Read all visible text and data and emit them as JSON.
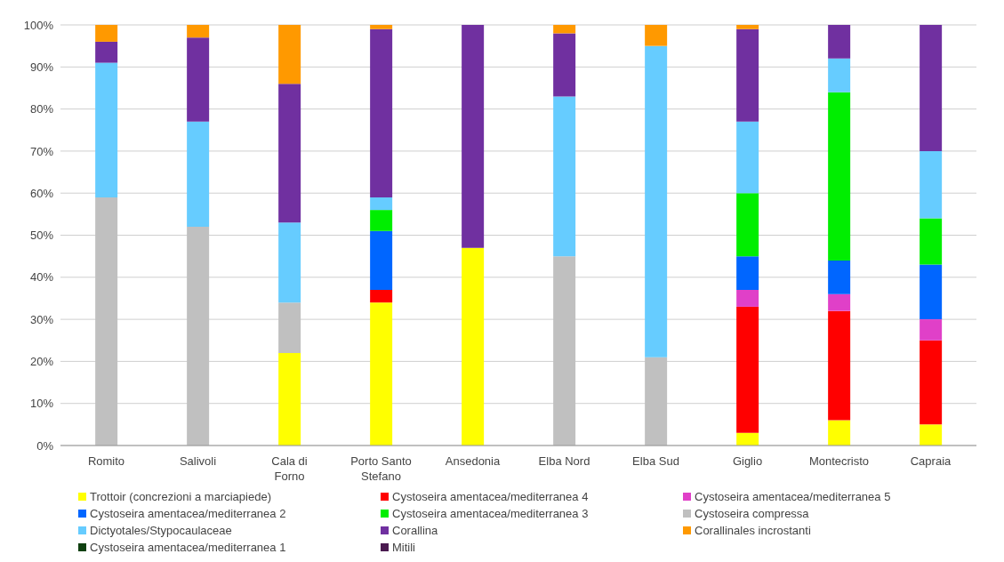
{
  "chart_data": {
    "type": "bar",
    "stacked": true,
    "categories": [
      "Romito",
      "Salivoli",
      "Cala di Forno",
      "Porto Santo Stefano",
      "Ansedonia",
      "Elba Nord",
      "Elba Sud",
      "Giglio",
      "Montecristo",
      "Capraia"
    ],
    "series": [
      {
        "name": "Trottoir (concrezioni a marciapiede)",
        "color": "#ffff00",
        "values": [
          0,
          0,
          22,
          34,
          47,
          0,
          0,
          3,
          6,
          5
        ]
      },
      {
        "name": "Cystoseira amentacea/mediterranea 4",
        "color": "#ff0000",
        "values": [
          0,
          0,
          0,
          3,
          0,
          0,
          0,
          30,
          26,
          20
        ]
      },
      {
        "name": "Cystoseira amentacea/mediterranea 5",
        "color": "#e040c8",
        "values": [
          0,
          0,
          0,
          0,
          0,
          0,
          0,
          4,
          4,
          5
        ]
      },
      {
        "name": "Cystoseira amentacea/mediterranea 2",
        "color": "#0066ff",
        "values": [
          0,
          0,
          0,
          14,
          0,
          0,
          0,
          8,
          8,
          13
        ]
      },
      {
        "name": "Cystoseira amentacea/mediterranea 3",
        "color": "#00ee00",
        "values": [
          0,
          0,
          0,
          5,
          0,
          0,
          0,
          15,
          40,
          11
        ]
      },
      {
        "name": "Cystoseira compressa",
        "color": "#c0c0c0",
        "values": [
          59,
          52,
          12,
          0,
          0,
          45,
          21,
          0,
          0,
          0
        ]
      },
      {
        "name": "Dictyotales/Stypocaulaceae",
        "color": "#66ccff",
        "values": [
          32,
          25,
          19,
          3,
          0,
          38,
          74,
          17,
          8,
          16
        ]
      },
      {
        "name": "Corallina",
        "color": "#7030a0",
        "values": [
          5,
          20,
          33,
          40,
          53,
          15,
          0,
          22,
          8,
          30
        ]
      },
      {
        "name": "Corallinales incrostanti",
        "color": "#ff9900",
        "values": [
          4,
          3,
          14,
          1,
          0,
          2,
          5,
          1,
          0,
          0
        ]
      },
      {
        "name": "Cystoseira amentacea/mediterranea 1",
        "color": "#0f4010",
        "values": [
          0,
          0,
          0,
          0,
          0,
          0,
          0,
          0,
          0,
          0
        ]
      },
      {
        "name": "Mitili",
        "color": "#4a1a50",
        "values": [
          0,
          0,
          0,
          0,
          0,
          0,
          0,
          0,
          0,
          0
        ]
      }
    ],
    "ylim": [
      0,
      100
    ],
    "yticks": [
      {
        "value": 0,
        "label": "0%"
      },
      {
        "value": 10,
        "label": "10%"
      },
      {
        "value": 20,
        "label": "20%"
      },
      {
        "value": 30,
        "label": "30%"
      },
      {
        "value": 40,
        "label": "40%"
      },
      {
        "value": 50,
        "label": "50%"
      },
      {
        "value": 60,
        "label": "60%"
      },
      {
        "value": 70,
        "label": "70%"
      },
      {
        "value": 80,
        "label": "80%"
      },
      {
        "value": 90,
        "label": "90%"
      },
      {
        "value": 100,
        "label": "100%"
      }
    ],
    "grid": "y",
    "legend": "bottom"
  }
}
